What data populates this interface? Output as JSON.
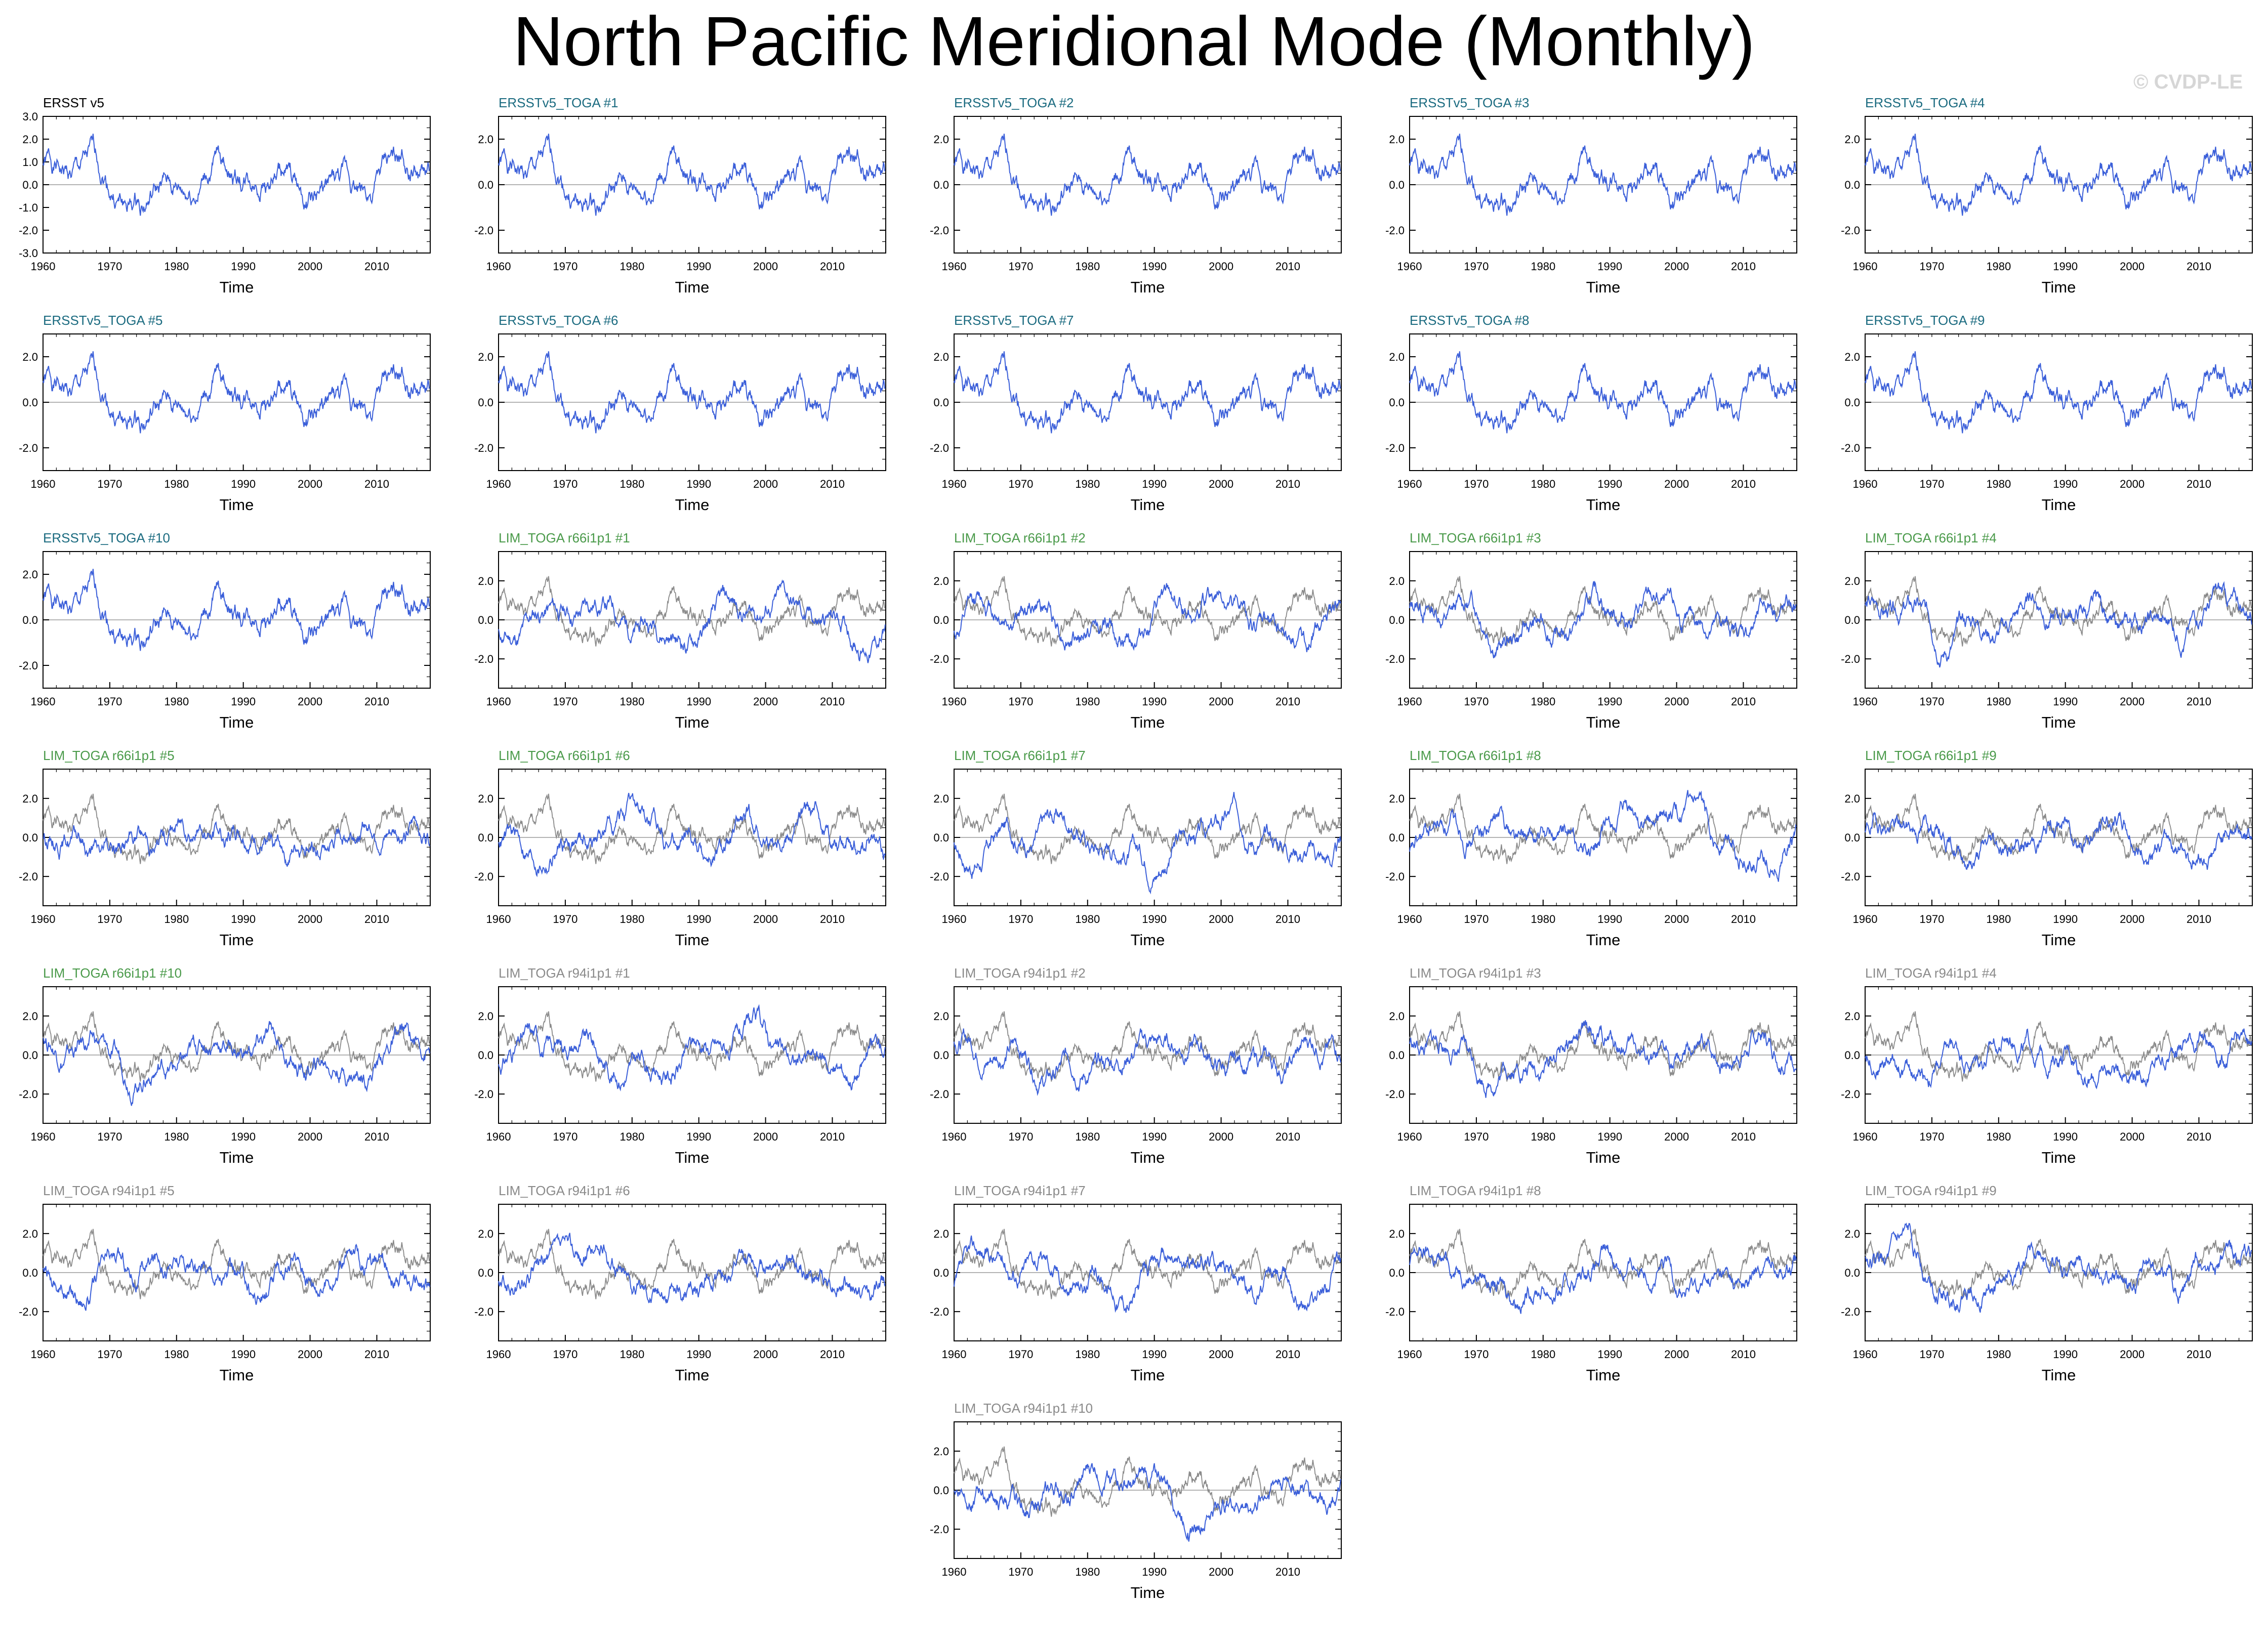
{
  "title": "North Pacific Meridional Mode (Monthly)",
  "watermark": "© CVDP-LE",
  "colors": {
    "line": "#3b5fd9",
    "obs_ref": "#8a8a8a",
    "title_obs": "#000000",
    "title_ersst": "#1b6b80",
    "title_r66": "#4a9a4a",
    "title_r94": "#8a8a8a",
    "zero_line": "#9a9a9a"
  },
  "chart_data": [
    {
      "type": "line",
      "title": "ERSST v5",
      "title_color": "title_obs",
      "xlabel": "Time",
      "ylabel": "",
      "xlim": [
        1960,
        2018
      ],
      "ylim": [
        -3,
        3
      ],
      "yticks": [
        "3.0",
        "2.0",
        "1.0",
        "0.0",
        "-1.0",
        "-2.0",
        "-3.0"
      ],
      "xticks": [
        "1960",
        "1970",
        "1980",
        "1990",
        "2000",
        "2010"
      ],
      "series": [
        {
          "seed": 1,
          "show_ref": false
        }
      ]
    },
    {
      "type": "line",
      "title": "ERSSTv5_TOGA #1",
      "title_color": "title_ersst",
      "xlabel": "Time",
      "ylabel": "",
      "xlim": [
        1960,
        2018
      ],
      "ylim": [
        -3,
        3
      ],
      "yticks": [
        "2.0",
        "0.0",
        "-2.0"
      ],
      "xticks": [
        "1960",
        "1970",
        "1980",
        "1990",
        "2000",
        "2010"
      ],
      "series": [
        {
          "seed": 1,
          "show_ref": false
        }
      ]
    },
    {
      "type": "line",
      "title": "ERSSTv5_TOGA #2",
      "title_color": "title_ersst",
      "xlabel": "Time",
      "ylabel": "",
      "xlim": [
        1960,
        2018
      ],
      "ylim": [
        -3,
        3
      ],
      "yticks": [
        "2.0",
        "0.0",
        "-2.0"
      ],
      "xticks": [
        "1960",
        "1970",
        "1980",
        "1990",
        "2000",
        "2010"
      ],
      "series": [
        {
          "seed": 1,
          "show_ref": false
        }
      ]
    },
    {
      "type": "line",
      "title": "ERSSTv5_TOGA #3",
      "title_color": "title_ersst",
      "xlabel": "Time",
      "ylabel": "",
      "xlim": [
        1960,
        2018
      ],
      "ylim": [
        -3,
        3
      ],
      "yticks": [
        "2.0",
        "0.0",
        "-2.0"
      ],
      "xticks": [
        "1960",
        "1970",
        "1980",
        "1990",
        "2000",
        "2010"
      ],
      "series": [
        {
          "seed": 1,
          "show_ref": false
        }
      ]
    },
    {
      "type": "line",
      "title": "ERSSTv5_TOGA #4",
      "title_color": "title_ersst",
      "xlabel": "Time",
      "ylabel": "",
      "xlim": [
        1960,
        2018
      ],
      "ylim": [
        -3,
        3
      ],
      "yticks": [
        "2.0",
        "0.0",
        "-2.0"
      ],
      "xticks": [
        "1960",
        "1970",
        "1980",
        "1990",
        "2000",
        "2010"
      ],
      "series": [
        {
          "seed": 1,
          "show_ref": false
        }
      ]
    },
    {
      "type": "line",
      "title": "ERSSTv5_TOGA #5",
      "title_color": "title_ersst",
      "xlabel": "Time",
      "ylabel": "",
      "xlim": [
        1960,
        2018
      ],
      "ylim": [
        -3,
        3
      ],
      "yticks": [
        "2.0",
        "0.0",
        "-2.0"
      ],
      "xticks": [
        "1960",
        "1970",
        "1980",
        "1990",
        "2000",
        "2010"
      ],
      "series": [
        {
          "seed": 1,
          "show_ref": false
        }
      ]
    },
    {
      "type": "line",
      "title": "ERSSTv5_TOGA #6",
      "title_color": "title_ersst",
      "xlabel": "Time",
      "ylabel": "",
      "xlim": [
        1960,
        2018
      ],
      "ylim": [
        -3,
        3
      ],
      "yticks": [
        "2.0",
        "0.0",
        "-2.0"
      ],
      "xticks": [
        "1960",
        "1970",
        "1980",
        "1990",
        "2000",
        "2010"
      ],
      "series": [
        {
          "seed": 1,
          "show_ref": false
        }
      ]
    },
    {
      "type": "line",
      "title": "ERSSTv5_TOGA #7",
      "title_color": "title_ersst",
      "xlabel": "Time",
      "ylabel": "",
      "xlim": [
        1960,
        2018
      ],
      "ylim": [
        -3,
        3
      ],
      "yticks": [
        "2.0",
        "0.0",
        "-2.0"
      ],
      "xticks": [
        "1960",
        "1970",
        "1980",
        "1990",
        "2000",
        "2010"
      ],
      "series": [
        {
          "seed": 1,
          "show_ref": false
        }
      ]
    },
    {
      "type": "line",
      "title": "ERSSTv5_TOGA #8",
      "title_color": "title_ersst",
      "xlabel": "Time",
      "ylabel": "",
      "xlim": [
        1960,
        2018
      ],
      "ylim": [
        -3,
        3
      ],
      "yticks": [
        "2.0",
        "0.0",
        "-2.0"
      ],
      "xticks": [
        "1960",
        "1970",
        "1980",
        "1990",
        "2000",
        "2010"
      ],
      "series": [
        {
          "seed": 1,
          "show_ref": false
        }
      ]
    },
    {
      "type": "line",
      "title": "ERSSTv5_TOGA #9",
      "title_color": "title_ersst",
      "xlabel": "Time",
      "ylabel": "",
      "xlim": [
        1960,
        2018
      ],
      "ylim": [
        -3,
        3
      ],
      "yticks": [
        "2.0",
        "0.0",
        "-2.0"
      ],
      "xticks": [
        "1960",
        "1970",
        "1980",
        "1990",
        "2000",
        "2010"
      ],
      "series": [
        {
          "seed": 1,
          "show_ref": false
        }
      ]
    },
    {
      "type": "line",
      "title": "ERSSTv5_TOGA #10",
      "title_color": "title_ersst",
      "xlabel": "Time",
      "ylabel": "",
      "xlim": [
        1960,
        2018
      ],
      "ylim": [
        -3,
        3
      ],
      "yticks": [
        "2.0",
        "0.0",
        "-2.0"
      ],
      "xticks": [
        "1960",
        "1970",
        "1980",
        "1990",
        "2000",
        "2010"
      ],
      "series": [
        {
          "seed": 1,
          "show_ref": false
        }
      ]
    },
    {
      "type": "line",
      "title": "LIM_TOGA r66i1p1 #1",
      "title_color": "title_r66",
      "xlabel": "Time",
      "ylabel": "",
      "xlim": [
        1960,
        2018
      ],
      "ylim": [
        -3.5,
        3.5
      ],
      "yticks": [
        "2.0",
        "0.0",
        "-2.0"
      ],
      "xticks": [
        "1960",
        "1970",
        "1980",
        "1990",
        "2000",
        "2010"
      ],
      "series": [
        {
          "seed": 11,
          "show_ref": true
        }
      ]
    },
    {
      "type": "line",
      "title": "LIM_TOGA r66i1p1 #2",
      "title_color": "title_r66",
      "xlabel": "Time",
      "ylabel": "",
      "xlim": [
        1960,
        2018
      ],
      "ylim": [
        -3.5,
        3.5
      ],
      "yticks": [
        "2.0",
        "0.0",
        "-2.0"
      ],
      "xticks": [
        "1960",
        "1970",
        "1980",
        "1990",
        "2000",
        "2010"
      ],
      "series": [
        {
          "seed": 12,
          "show_ref": true
        }
      ]
    },
    {
      "type": "line",
      "title": "LIM_TOGA r66i1p1 #3",
      "title_color": "title_r66",
      "xlabel": "Time",
      "ylabel": "",
      "xlim": [
        1960,
        2018
      ],
      "ylim": [
        -3.5,
        3.5
      ],
      "yticks": [
        "2.0",
        "0.0",
        "-2.0"
      ],
      "xticks": [
        "1960",
        "1970",
        "1980",
        "1990",
        "2000",
        "2010"
      ],
      "series": [
        {
          "seed": 13,
          "show_ref": true
        }
      ]
    },
    {
      "type": "line",
      "title": "LIM_TOGA r66i1p1 #4",
      "title_color": "title_r66",
      "xlabel": "Time",
      "ylabel": "",
      "xlim": [
        1960,
        2018
      ],
      "ylim": [
        -3.5,
        3.5
      ],
      "yticks": [
        "2.0",
        "0.0",
        "-2.0"
      ],
      "xticks": [
        "1960",
        "1970",
        "1980",
        "1990",
        "2000",
        "2010"
      ],
      "series": [
        {
          "seed": 14,
          "show_ref": true
        }
      ]
    },
    {
      "type": "line",
      "title": "LIM_TOGA r66i1p1 #5",
      "title_color": "title_r66",
      "xlabel": "Time",
      "ylabel": "",
      "xlim": [
        1960,
        2018
      ],
      "ylim": [
        -3.5,
        3.5
      ],
      "yticks": [
        "2.0",
        "0.0",
        "-2.0"
      ],
      "xticks": [
        "1960",
        "1970",
        "1980",
        "1990",
        "2000",
        "2010"
      ],
      "series": [
        {
          "seed": 15,
          "show_ref": true
        }
      ]
    },
    {
      "type": "line",
      "title": "LIM_TOGA r66i1p1 #6",
      "title_color": "title_r66",
      "xlabel": "Time",
      "ylabel": "",
      "xlim": [
        1960,
        2018
      ],
      "ylim": [
        -3.5,
        3.5
      ],
      "yticks": [
        "2.0",
        "0.0",
        "-2.0"
      ],
      "xticks": [
        "1960",
        "1970",
        "1980",
        "1990",
        "2000",
        "2010"
      ],
      "series": [
        {
          "seed": 16,
          "show_ref": true
        }
      ]
    },
    {
      "type": "line",
      "title": "LIM_TOGA r66i1p1 #7",
      "title_color": "title_r66",
      "xlabel": "Time",
      "ylabel": "",
      "xlim": [
        1960,
        2018
      ],
      "ylim": [
        -3.5,
        3.5
      ],
      "yticks": [
        "2.0",
        "0.0",
        "-2.0"
      ],
      "xticks": [
        "1960",
        "1970",
        "1980",
        "1990",
        "2000",
        "2010"
      ],
      "series": [
        {
          "seed": 17,
          "show_ref": true
        }
      ]
    },
    {
      "type": "line",
      "title": "LIM_TOGA r66i1p1 #8",
      "title_color": "title_r66",
      "xlabel": "Time",
      "ylabel": "",
      "xlim": [
        1960,
        2018
      ],
      "ylim": [
        -3.5,
        3.5
      ],
      "yticks": [
        "2.0",
        "0.0",
        "-2.0"
      ],
      "xticks": [
        "1960",
        "1970",
        "1980",
        "1990",
        "2000",
        "2010"
      ],
      "series": [
        {
          "seed": 18,
          "show_ref": true
        }
      ]
    },
    {
      "type": "line",
      "title": "LIM_TOGA r66i1p1 #9",
      "title_color": "title_r66",
      "xlabel": "Time",
      "ylabel": "",
      "xlim": [
        1960,
        2018
      ],
      "ylim": [
        -3.5,
        3.5
      ],
      "yticks": [
        "2.0",
        "0.0",
        "-2.0"
      ],
      "xticks": [
        "1960",
        "1970",
        "1980",
        "1990",
        "2000",
        "2010"
      ],
      "series": [
        {
          "seed": 19,
          "show_ref": true
        }
      ]
    },
    {
      "type": "line",
      "title": "LIM_TOGA r66i1p1 #10",
      "title_color": "title_r66",
      "xlabel": "Time",
      "ylabel": "",
      "xlim": [
        1960,
        2018
      ],
      "ylim": [
        -3.5,
        3.5
      ],
      "yticks": [
        "2.0",
        "0.0",
        "-2.0"
      ],
      "xticks": [
        "1960",
        "1970",
        "1980",
        "1990",
        "2000",
        "2010"
      ],
      "series": [
        {
          "seed": 20,
          "show_ref": true
        }
      ]
    },
    {
      "type": "line",
      "title": "LIM_TOGA r94i1p1 #1",
      "title_color": "title_r94",
      "xlabel": "Time",
      "ylabel": "",
      "xlim": [
        1960,
        2018
      ],
      "ylim": [
        -3.5,
        3.5
      ],
      "yticks": [
        "2.0",
        "0.0",
        "-2.0"
      ],
      "xticks": [
        "1960",
        "1970",
        "1980",
        "1990",
        "2000",
        "2010"
      ],
      "series": [
        {
          "seed": 31,
          "show_ref": true
        }
      ]
    },
    {
      "type": "line",
      "title": "LIM_TOGA r94i1p1 #2",
      "title_color": "title_r94",
      "xlabel": "Time",
      "ylabel": "",
      "xlim": [
        1960,
        2018
      ],
      "ylim": [
        -3.5,
        3.5
      ],
      "yticks": [
        "2.0",
        "0.0",
        "-2.0"
      ],
      "xticks": [
        "1960",
        "1970",
        "1980",
        "1990",
        "2000",
        "2010"
      ],
      "series": [
        {
          "seed": 32,
          "show_ref": true
        }
      ]
    },
    {
      "type": "line",
      "title": "LIM_TOGA r94i1p1 #3",
      "title_color": "title_r94",
      "xlabel": "Time",
      "ylabel": "",
      "xlim": [
        1960,
        2018
      ],
      "ylim": [
        -3.5,
        3.5
      ],
      "yticks": [
        "2.0",
        "0.0",
        "-2.0"
      ],
      "xticks": [
        "1960",
        "1970",
        "1980",
        "1990",
        "2000",
        "2010"
      ],
      "series": [
        {
          "seed": 33,
          "show_ref": true
        }
      ]
    },
    {
      "type": "line",
      "title": "LIM_TOGA r94i1p1 #4",
      "title_color": "title_r94",
      "xlabel": "Time",
      "ylabel": "",
      "xlim": [
        1960,
        2018
      ],
      "ylim": [
        -3.5,
        3.5
      ],
      "yticks": [
        "2.0",
        "0.0",
        "-2.0"
      ],
      "xticks": [
        "1960",
        "1970",
        "1980",
        "1990",
        "2000",
        "2010"
      ],
      "series": [
        {
          "seed": 34,
          "show_ref": true
        }
      ]
    },
    {
      "type": "line",
      "title": "LIM_TOGA r94i1p1 #5",
      "title_color": "title_r94",
      "xlabel": "Time",
      "ylabel": "",
      "xlim": [
        1960,
        2018
      ],
      "ylim": [
        -3.5,
        3.5
      ],
      "yticks": [
        "2.0",
        "0.0",
        "-2.0"
      ],
      "xticks": [
        "1960",
        "1970",
        "1980",
        "1990",
        "2000",
        "2010"
      ],
      "series": [
        {
          "seed": 35,
          "show_ref": true
        }
      ]
    },
    {
      "type": "line",
      "title": "LIM_TOGA r94i1p1 #6",
      "title_color": "title_r94",
      "xlabel": "Time",
      "ylabel": "",
      "xlim": [
        1960,
        2018
      ],
      "ylim": [
        -3.5,
        3.5
      ],
      "yticks": [
        "2.0",
        "0.0",
        "-2.0"
      ],
      "xticks": [
        "1960",
        "1970",
        "1980",
        "1990",
        "2000",
        "2010"
      ],
      "series": [
        {
          "seed": 36,
          "show_ref": true
        }
      ]
    },
    {
      "type": "line",
      "title": "LIM_TOGA r94i1p1 #7",
      "title_color": "title_r94",
      "xlabel": "Time",
      "ylabel": "",
      "xlim": [
        1960,
        2018
      ],
      "ylim": [
        -3.5,
        3.5
      ],
      "yticks": [
        "2.0",
        "0.0",
        "-2.0"
      ],
      "xticks": [
        "1960",
        "1970",
        "1980",
        "1990",
        "2000",
        "2010"
      ],
      "series": [
        {
          "seed": 37,
          "show_ref": true
        }
      ]
    },
    {
      "type": "line",
      "title": "LIM_TOGA r94i1p1 #8",
      "title_color": "title_r94",
      "xlabel": "Time",
      "ylabel": "",
      "xlim": [
        1960,
        2018
      ],
      "ylim": [
        -3.5,
        3.5
      ],
      "yticks": [
        "2.0",
        "0.0",
        "-2.0"
      ],
      "xticks": [
        "1960",
        "1970",
        "1980",
        "1990",
        "2000",
        "2010"
      ],
      "series": [
        {
          "seed": 38,
          "show_ref": true
        }
      ]
    },
    {
      "type": "line",
      "title": "LIM_TOGA r94i1p1 #9",
      "title_color": "title_r94",
      "xlabel": "Time",
      "ylabel": "",
      "xlim": [
        1960,
        2018
      ],
      "ylim": [
        -3.5,
        3.5
      ],
      "yticks": [
        "2.0",
        "0.0",
        "-2.0"
      ],
      "xticks": [
        "1960",
        "1970",
        "1980",
        "1990",
        "2000",
        "2010"
      ],
      "series": [
        {
          "seed": 39,
          "show_ref": true
        }
      ]
    },
    {
      "type": "line",
      "title": "LIM_TOGA r94i1p1 #10",
      "title_color": "title_r94",
      "xlabel": "Time",
      "ylabel": "",
      "xlim": [
        1960,
        2018
      ],
      "ylim": [
        -3.5,
        3.5
      ],
      "yticks": [
        "2.0",
        "0.0",
        "-2.0"
      ],
      "xticks": [
        "1960",
        "1970",
        "1980",
        "1990",
        "2000",
        "2010"
      ],
      "series": [
        {
          "seed": 40,
          "show_ref": true
        }
      ]
    }
  ]
}
